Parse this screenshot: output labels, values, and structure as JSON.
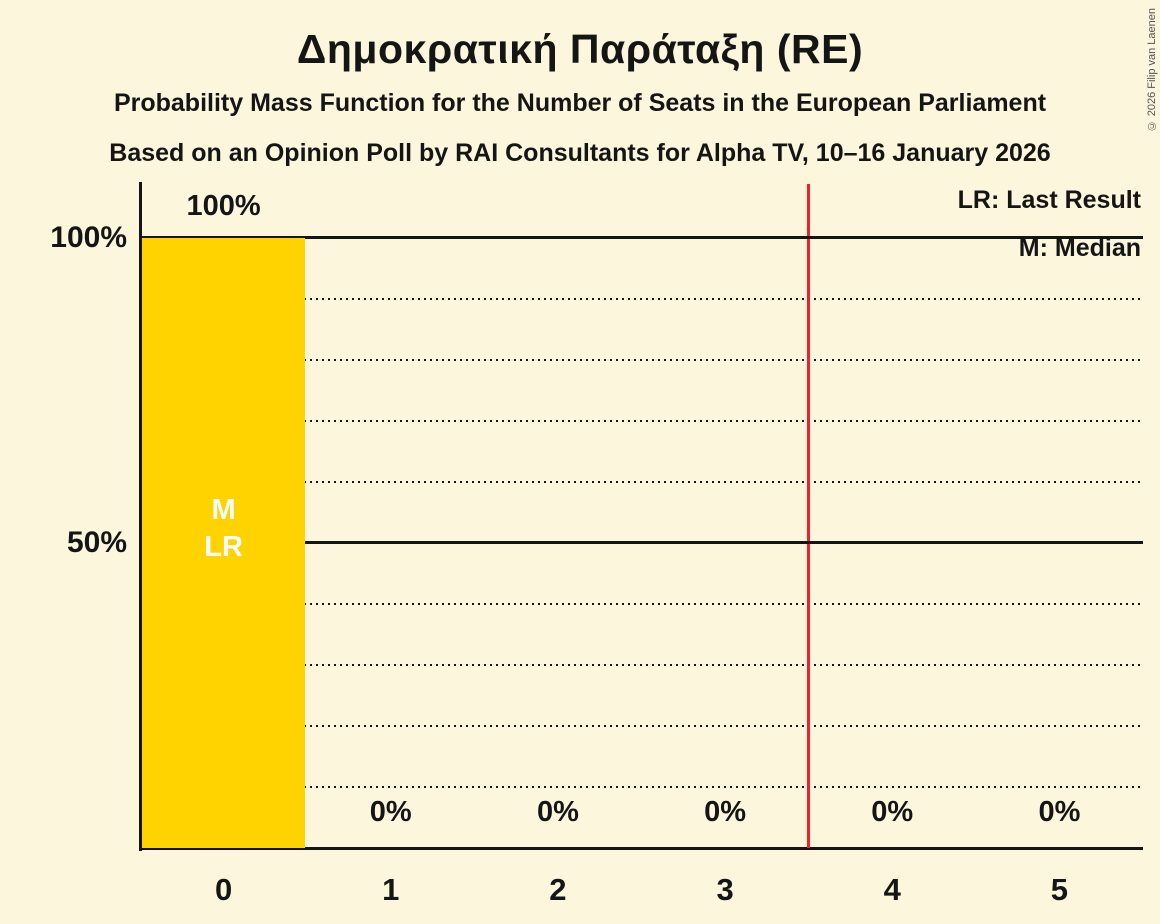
{
  "title": "Δημοκρατική Παράταξη (RE)",
  "subtitle1": "Probability Mass Function for the Number of Seats in the European Parliament",
  "subtitle2": "Based on an Opinion Poll by RAI Consultants for Alpha TV, 10–16 January 2026",
  "copyright": "© 2026 Filip van Laenen",
  "colors": {
    "background": "#fcf6dd",
    "bar": "#ffd300",
    "gridline": "#151515",
    "threshold_line": "#f0212b",
    "bar_annotation_text": "#ffffff"
  },
  "y_axis": {
    "labels": [
      {
        "text": "100%",
        "value": 100
      },
      {
        "text": "50%",
        "value": 50
      }
    ]
  },
  "chart_data": {
    "type": "bar",
    "title": "Δημοκρατική Παράταξη (RE)",
    "categories": [
      "0",
      "1",
      "2",
      "3",
      "4",
      "5"
    ],
    "values": [
      100,
      0,
      0,
      0,
      0,
      0
    ],
    "value_labels": [
      "100%",
      "0%",
      "0%",
      "0%",
      "0%",
      "0%"
    ],
    "ylim": [
      0,
      100
    ],
    "gridlines_pct": [
      10,
      20,
      30,
      40,
      50,
      60,
      70,
      80,
      90,
      100
    ],
    "solid_gridlines_pct": [
      50,
      100
    ],
    "grid": "horizontal, dotted every 10%, solid at 50% and 100%",
    "legend": [
      "LR: Last Result",
      "M: Median"
    ],
    "legend_position": "top-right",
    "vertical_line_x": 3.5,
    "annotations": {
      "seat": "0",
      "labels": [
        "M",
        "LR"
      ]
    },
    "median_seats": 0,
    "last_result_seats": 0
  }
}
